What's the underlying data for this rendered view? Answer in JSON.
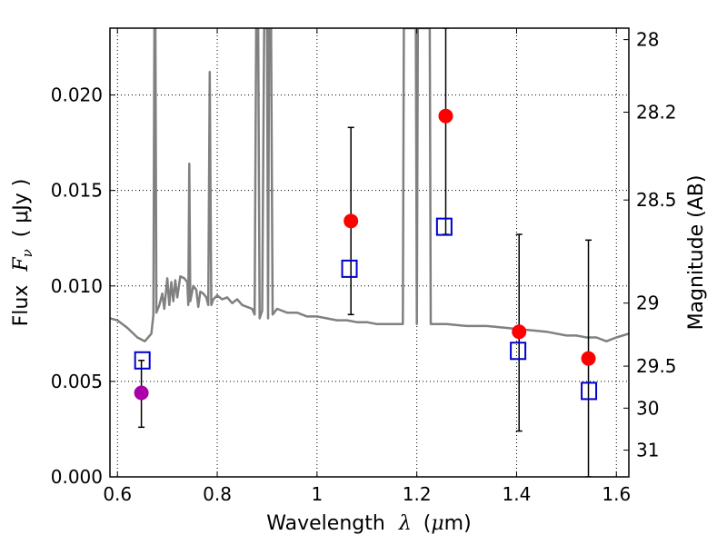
{
  "chart_data": {
    "type": "scatter",
    "xlabel": {
      "prefix": "Wavelength",
      "symbol": "λ",
      "unit_open": "(",
      "unit_mu": "μ",
      "unit_rest": "m)"
    },
    "ylabel": {
      "prefix": "Flux",
      "symbol": "F",
      "sub": "ν",
      "unit": "( μJy )"
    },
    "y2label": "Magnitude (AB)",
    "xlim": [
      0.585,
      1.625
    ],
    "ylim": [
      0.0,
      0.0235
    ],
    "grid": true,
    "x_ticks": [
      0.6,
      0.8,
      1.0,
      1.2,
      1.4,
      1.6
    ],
    "x_tick_labels": [
      "0.6",
      "0.8",
      "1",
      "1.2",
      "1.4",
      "1.6"
    ],
    "y_ticks": [
      0.0,
      0.005,
      0.01,
      0.015,
      0.02
    ],
    "y_tick_labels": [
      "0.000",
      "0.005",
      "0.010",
      "0.015",
      "0.020"
    ],
    "y2_ticks": [
      {
        "label": "28",
        "flux": 0.0229
      },
      {
        "label": "28.2",
        "flux": 0.0191
      },
      {
        "label": "28.5",
        "flux": 0.0145
      },
      {
        "label": "29",
        "flux": 0.0091
      },
      {
        "label": "29.5",
        "flux": 0.0058
      },
      {
        "label": "30",
        "flux": 0.0036
      },
      {
        "label": "31",
        "flux": 0.0014
      }
    ],
    "colors": {
      "model": "#808080",
      "observed": "#ff0000",
      "observed_special": "#aa00aa",
      "model_box": "#0000cc",
      "error": "#000000"
    },
    "observed": [
      {
        "x": 0.648,
        "y": 0.0044,
        "yerr_low": 0.0026,
        "yerr_high": 0.0061,
        "color": "#aa00aa"
      },
      {
        "x": 1.068,
        "y": 0.0134,
        "yerr_low": 0.0085,
        "yerr_high": 0.0183,
        "color": "#ff0000"
      },
      {
        "x": 1.258,
        "y": 0.0189,
        "yerr_low": 0.0127,
        "yerr_high": 0.0235,
        "color": "#ff0000"
      },
      {
        "x": 1.405,
        "y": 0.0076,
        "yerr_low": 0.0024,
        "yerr_high": 0.0127,
        "color": "#ff0000"
      },
      {
        "x": 1.544,
        "y": 0.0062,
        "yerr_low": 0.0,
        "yerr_high": 0.0124,
        "color": "#ff0000"
      }
    ],
    "model_photometry": [
      {
        "x": 0.65,
        "y": 0.0061
      },
      {
        "x": 1.065,
        "y": 0.0109
      },
      {
        "x": 1.255,
        "y": 0.0131
      },
      {
        "x": 1.403,
        "y": 0.0066
      },
      {
        "x": 1.545,
        "y": 0.0045
      }
    ],
    "model_spectrum": [
      [
        0.585,
        0.0083
      ],
      [
        0.6,
        0.0082
      ],
      [
        0.62,
        0.0078
      ],
      [
        0.64,
        0.0073
      ],
      [
        0.655,
        0.0071
      ],
      [
        0.668,
        0.0075
      ],
      [
        0.672,
        0.0085
      ],
      [
        0.674,
        0.0235
      ],
      [
        0.676,
        0.0235
      ],
      [
        0.678,
        0.0086
      ],
      [
        0.684,
        0.009
      ],
      [
        0.69,
        0.0096
      ],
      [
        0.694,
        0.0088
      ],
      [
        0.7,
        0.0104
      ],
      [
        0.704,
        0.009
      ],
      [
        0.708,
        0.0102
      ],
      [
        0.712,
        0.0092
      ],
      [
        0.716,
        0.0103
      ],
      [
        0.72,
        0.0094
      ],
      [
        0.726,
        0.0105
      ],
      [
        0.734,
        0.0104
      ],
      [
        0.74,
        0.0102
      ],
      [
        0.742,
        0.009
      ],
      [
        0.744,
        0.0164
      ],
      [
        0.746,
        0.0092
      ],
      [
        0.752,
        0.01
      ],
      [
        0.758,
        0.0098
      ],
      [
        0.762,
        0.0089
      ],
      [
        0.766,
        0.0097
      ],
      [
        0.772,
        0.0096
      ],
      [
        0.778,
        0.0094
      ],
      [
        0.782,
        0.009
      ],
      [
        0.785,
        0.0212
      ],
      [
        0.788,
        0.009
      ],
      [
        0.792,
        0.0093
      ],
      [
        0.8,
        0.0095
      ],
      [
        0.81,
        0.0093
      ],
      [
        0.82,
        0.0094
      ],
      [
        0.83,
        0.0091
      ],
      [
        0.84,
        0.0093
      ],
      [
        0.85,
        0.009
      ],
      [
        0.86,
        0.0089
      ],
      [
        0.87,
        0.0088
      ],
      [
        0.875,
        0.0085
      ],
      [
        0.878,
        0.0235
      ],
      [
        0.882,
        0.0235
      ],
      [
        0.885,
        0.0083
      ],
      [
        0.89,
        0.0087
      ],
      [
        0.894,
        0.0235
      ],
      [
        0.9,
        0.0235
      ],
      [
        0.902,
        0.0083
      ],
      [
        0.904,
        0.0235
      ],
      [
        0.908,
        0.0235
      ],
      [
        0.911,
        0.0085
      ],
      [
        0.92,
        0.0088
      ],
      [
        0.94,
        0.0086
      ],
      [
        0.96,
        0.0086
      ],
      [
        0.98,
        0.0084
      ],
      [
        1.0,
        0.0084
      ],
      [
        1.02,
        0.0083
      ],
      [
        1.04,
        0.0082
      ],
      [
        1.06,
        0.0082
      ],
      [
        1.08,
        0.0081
      ],
      [
        1.1,
        0.0081
      ],
      [
        1.12,
        0.008
      ],
      [
        1.14,
        0.008
      ],
      [
        1.16,
        0.008
      ],
      [
        1.172,
        0.008
      ],
      [
        1.174,
        0.0235
      ],
      [
        1.198,
        0.0235
      ],
      [
        1.2,
        0.008
      ],
      [
        1.202,
        0.0235
      ],
      [
        1.226,
        0.0235
      ],
      [
        1.228,
        0.008
      ],
      [
        1.26,
        0.008
      ],
      [
        1.3,
        0.0079
      ],
      [
        1.34,
        0.0079
      ],
      [
        1.38,
        0.0078
      ],
      [
        1.42,
        0.0077
      ],
      [
        1.46,
        0.0076
      ],
      [
        1.48,
        0.0075
      ],
      [
        1.5,
        0.0074
      ],
      [
        1.52,
        0.0074
      ],
      [
        1.54,
        0.0073
      ],
      [
        1.56,
        0.0073
      ],
      [
        1.58,
        0.0071
      ],
      [
        1.6,
        0.0073
      ],
      [
        1.625,
        0.0075
      ]
    ]
  }
}
